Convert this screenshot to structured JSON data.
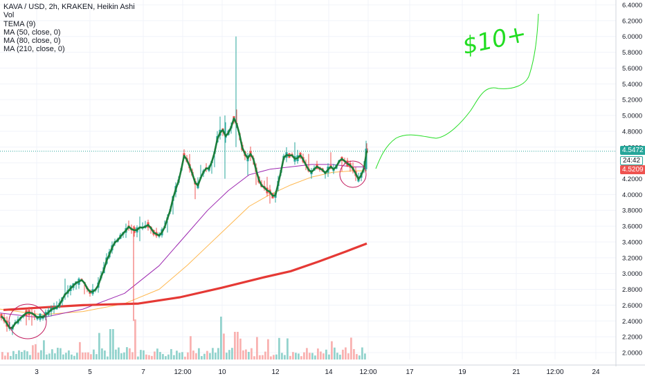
{
  "header": {
    "title": "KAVA / USD, 2h, KRAKEN, Heikin Ashi",
    "indicators": [
      "Vol",
      "TEMA (9)",
      "MA (50, close, 0)",
      "MA (80, close, 0)",
      "MA (210, close, 0)"
    ]
  },
  "price_labels": {
    "last_price": "4.5472",
    "countdown": "24:42",
    "secondary_price": "4.5209"
  },
  "annotation": {
    "text": "$10+"
  },
  "colors": {
    "up": "#26a69a",
    "down": "#ef5350",
    "tema": "#1b7d3a",
    "ma50": "#9c27b0",
    "ma80": "#ffb74d",
    "ma210": "#e53935",
    "drawing": "#22dd22",
    "grid": "#f0f3fa",
    "last_price_line": "#26a69a"
  },
  "chart_data": {
    "type": "candlestick",
    "x_ticks": [
      "3",
      "5",
      "7",
      "12:00",
      "10",
      "12",
      "14",
      "12:00",
      "17",
      "19",
      "21",
      "12:00",
      "24"
    ],
    "y_ticks": [
      "6.4000",
      "6.2000",
      "6.0000",
      "5.8000",
      "5.6000",
      "5.4000",
      "5.2000",
      "5.0000",
      "4.8000",
      "4.6000",
      "4.4000",
      "4.2000",
      "4.0000",
      "3.8000",
      "3.6000",
      "3.4000",
      "3.2000",
      "3.0000",
      "2.8000",
      "2.6000",
      "2.4000",
      "2.2000",
      "2.0000"
    ],
    "ylim": [
      1.95,
      6.45
    ],
    "last_price": 4.5472,
    "price_path": [
      [
        0,
        2.48
      ],
      [
        8,
        2.4
      ],
      [
        15,
        2.3
      ],
      [
        22,
        2.37
      ],
      [
        30,
        2.44
      ],
      [
        37,
        2.48
      ],
      [
        45,
        2.5
      ],
      [
        52,
        2.46
      ],
      [
        60,
        2.45
      ],
      [
        68,
        2.5
      ],
      [
        76,
        2.55
      ],
      [
        84,
        2.6
      ],
      [
        92,
        2.7
      ],
      [
        100,
        2.8
      ],
      [
        108,
        2.87
      ],
      [
        116,
        2.92
      ],
      [
        124,
        2.86
      ],
      [
        132,
        2.75
      ],
      [
        140,
        2.8
      ],
      [
        148,
        3.0
      ],
      [
        156,
        3.2
      ],
      [
        164,
        3.35
      ],
      [
        172,
        3.45
      ],
      [
        180,
        3.55
      ],
      [
        188,
        3.6
      ],
      [
        196,
        3.52
      ],
      [
        204,
        3.58
      ],
      [
        212,
        3.62
      ],
      [
        220,
        3.55
      ],
      [
        228,
        3.48
      ],
      [
        236,
        3.55
      ],
      [
        244,
        3.75
      ],
      [
        252,
        4.0
      ],
      [
        260,
        4.25
      ],
      [
        266,
        4.48
      ],
      [
        272,
        4.4
      ],
      [
        278,
        4.25
      ],
      [
        284,
        4.1
      ],
      [
        290,
        4.2
      ],
      [
        296,
        4.35
      ],
      [
        302,
        4.32
      ],
      [
        308,
        4.45
      ],
      [
        314,
        4.7
      ],
      [
        320,
        4.85
      ],
      [
        326,
        4.75
      ],
      [
        332,
        4.8
      ],
      [
        338,
        4.95
      ],
      [
        344,
        4.85
      ],
      [
        350,
        4.6
      ],
      [
        356,
        4.45
      ],
      [
        362,
        4.5
      ],
      [
        368,
        4.4
      ],
      [
        374,
        4.2
      ],
      [
        380,
        4.1
      ],
      [
        386,
        4.05
      ],
      [
        392,
        4.0
      ],
      [
        398,
        3.98
      ],
      [
        404,
        4.2
      ],
      [
        410,
        4.45
      ],
      [
        416,
        4.52
      ],
      [
        422,
        4.48
      ],
      [
        428,
        4.45
      ],
      [
        434,
        4.48
      ],
      [
        440,
        4.4
      ],
      [
        446,
        4.3
      ],
      [
        452,
        4.28
      ],
      [
        458,
        4.35
      ],
      [
        464,
        4.3
      ],
      [
        470,
        4.28
      ],
      [
        476,
        4.35
      ],
      [
        482,
        4.3
      ],
      [
        488,
        4.38
      ],
      [
        494,
        4.45
      ],
      [
        500,
        4.4
      ],
      [
        506,
        4.35
      ],
      [
        512,
        4.3
      ],
      [
        518,
        4.2
      ],
      [
        524,
        4.25
      ],
      [
        530,
        4.55
      ]
    ],
    "spikes": [
      {
        "x": 193,
        "high": 3.6,
        "low": 2.4
      },
      {
        "x": 341,
        "high": 6.0,
        "low": 4.6
      },
      {
        "x": 325,
        "high": 5.0,
        "low": 4.2
      }
    ],
    "ma50": [
      [
        0,
        2.5
      ],
      [
        60,
        2.44
      ],
      [
        120,
        2.55
      ],
      [
        180,
        2.75
      ],
      [
        230,
        3.1
      ],
      [
        270,
        3.5
      ],
      [
        300,
        3.8
      ],
      [
        330,
        4.05
      ],
      [
        360,
        4.25
      ],
      [
        390,
        4.32
      ],
      [
        420,
        4.35
      ],
      [
        450,
        4.38
      ],
      [
        480,
        4.38
      ],
      [
        510,
        4.35
      ],
      [
        530,
        4.35
      ]
    ],
    "ma80": [
      [
        0,
        2.55
      ],
      [
        60,
        2.48
      ],
      [
        120,
        2.52
      ],
      [
        180,
        2.62
      ],
      [
        230,
        2.8
      ],
      [
        270,
        3.1
      ],
      [
        300,
        3.35
      ],
      [
        330,
        3.6
      ],
      [
        360,
        3.85
      ],
      [
        390,
        4.0
      ],
      [
        420,
        4.12
      ],
      [
        450,
        4.22
      ],
      [
        480,
        4.28
      ],
      [
        510,
        4.3
      ],
      [
        530,
        4.3
      ]
    ],
    "ma210": [
      [
        5,
        2.54
      ],
      [
        60,
        2.57
      ],
      [
        120,
        2.6
      ],
      [
        200,
        2.62
      ],
      [
        260,
        2.7
      ],
      [
        320,
        2.82
      ],
      [
        380,
        2.95
      ],
      [
        420,
        3.03
      ],
      [
        460,
        3.15
      ],
      [
        500,
        3.28
      ],
      [
        530,
        3.38
      ]
    ],
    "volume": {
      "count": 132,
      "x_start": 2,
      "x_end": 530,
      "max_bar": 45
    }
  }
}
